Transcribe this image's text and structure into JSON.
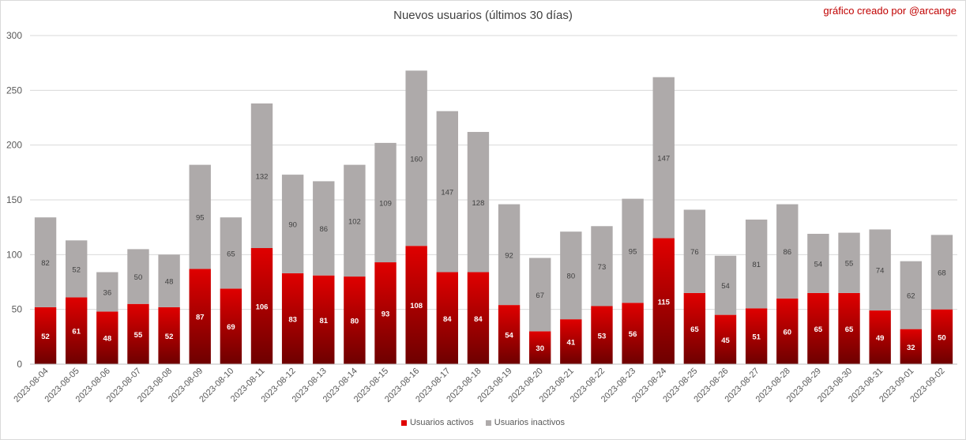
{
  "title": "Nuevos usuarios (últimos 30 días)",
  "credit": "gráfico creado por @arcange",
  "colors": {
    "activos_top": "#e00000",
    "activos_bottom": "#6e0000",
    "inactivos": "#aeaaaa",
    "grid": "#d9d9d9",
    "axis": "#bfbfbf"
  },
  "chart_data": {
    "type": "bar",
    "stacked": true,
    "title": "Nuevos usuarios (últimos 30 días)",
    "xlabel": "",
    "ylabel": "",
    "ylim": [
      0,
      300
    ],
    "yticks": [
      0,
      50,
      100,
      150,
      200,
      250,
      300
    ],
    "grid": true,
    "legend_position": "bottom",
    "categories": [
      "2023-08-04",
      "2023-08-05",
      "2023-08-06",
      "2023-08-07",
      "2023-08-08",
      "2023-08-09",
      "2023-08-10",
      "2023-08-11",
      "2023-08-12",
      "2023-08-13",
      "2023-08-14",
      "2023-08-15",
      "2023-08-16",
      "2023-08-17",
      "2023-08-18",
      "2023-08-19",
      "2023-08-20",
      "2023-08-21",
      "2023-08-22",
      "2023-08-23",
      "2023-08-24",
      "2023-08-25",
      "2023-08-26",
      "2023-08-27",
      "2023-08-28",
      "2023-08-29",
      "2023-08-30",
      "2023-08-31",
      "2023-09-01",
      "2023-09-02"
    ],
    "series": [
      {
        "name": "Usuarios activos",
        "values": [
          52,
          61,
          48,
          55,
          52,
          87,
          69,
          106,
          83,
          81,
          80,
          93,
          108,
          84,
          84,
          54,
          30,
          41,
          53,
          56,
          115,
          65,
          45,
          51,
          60,
          65,
          65,
          49,
          32,
          50
        ]
      },
      {
        "name": "Usuarios inactivos",
        "values": [
          82,
          52,
          36,
          50,
          48,
          95,
          65,
          132,
          90,
          86,
          102,
          109,
          160,
          147,
          128,
          92,
          67,
          80,
          73,
          95,
          147,
          76,
          54,
          81,
          86,
          54,
          55,
          74,
          62,
          68
        ]
      }
    ]
  }
}
